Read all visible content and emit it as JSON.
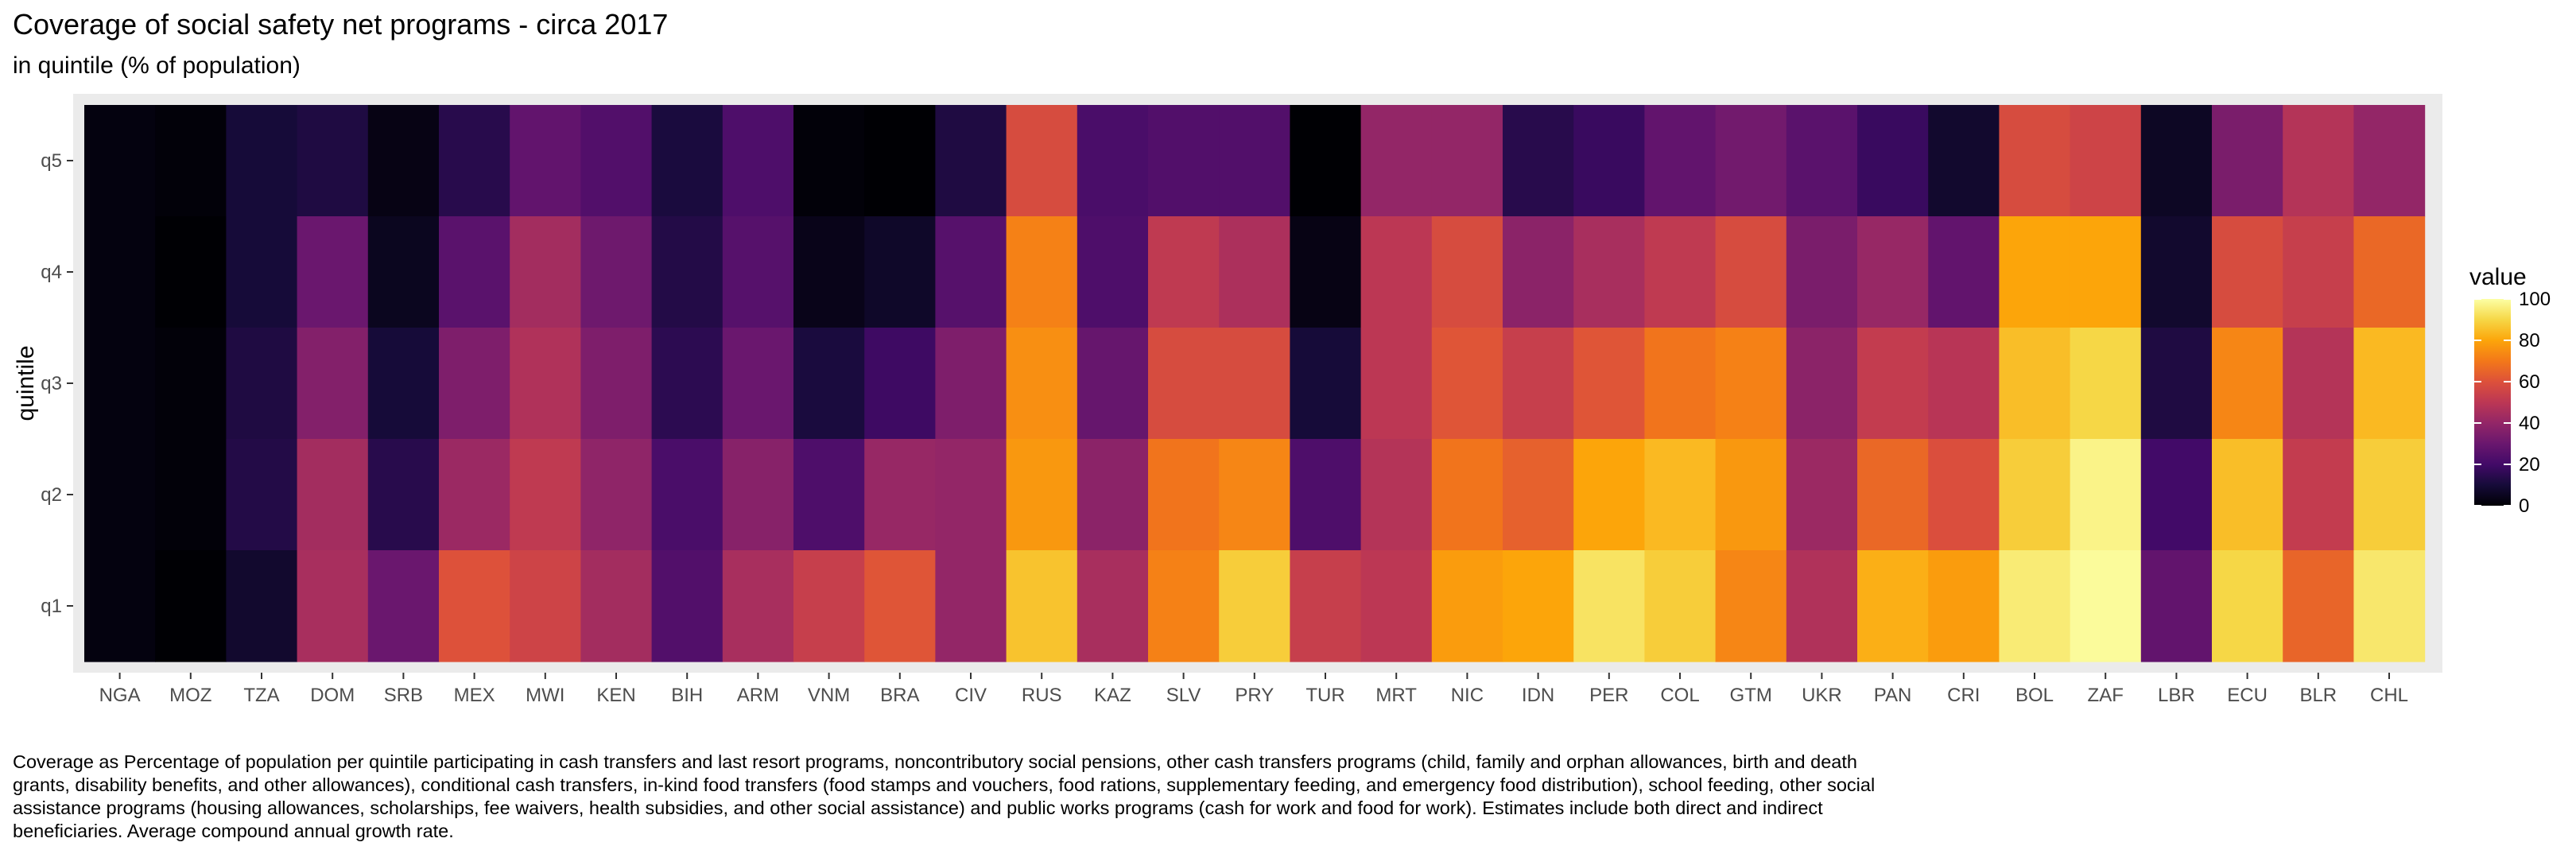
{
  "title": "Coverage of social safety net programs - circa 2017",
  "subtitle": "in quintile (% of population)",
  "caption": "Coverage as Percentage of population per quintile participating in cash transfers and last resort programs, noncontributory social pensions, other cash transfers programs (child, family and orphan allowances, birth and death grants, disability benefits, and other allowances), conditional cash transfers, in-kind food transfers (food stamps and vouchers, food rations, supplementary feeding, and emergency food distribution), school feeding, other social assistance programs (housing allowances, scholarships, fee waivers, health subsidies, and other social assistance) and public works programs (cash for work and food for work). Estimates include both direct and indirect beneficiaries. Average compound annual growth rate.",
  "chart_data": {
    "type": "heatmap",
    "colormap": "inferno",
    "panel_background": "#EBEBEB",
    "grid": false,
    "legend_position": "right",
    "xlabel": "",
    "ylabel": "quintile",
    "legend_title": "value",
    "legend_range": [
      0,
      100
    ],
    "legend_ticks": [
      0,
      20,
      40,
      60,
      80,
      100
    ],
    "x": [
      "NGA",
      "MOZ",
      "TZA",
      "DOM",
      "SRB",
      "MEX",
      "MWI",
      "KEN",
      "BIH",
      "ARM",
      "VNM",
      "BRA",
      "CIV",
      "RUS",
      "KAZ",
      "SLV",
      "PRY",
      "TUR",
      "MRT",
      "NIC",
      "IDN",
      "PER",
      "COL",
      "GTM",
      "UKR",
      "PAN",
      "CRI",
      "BOL",
      "ZAF",
      "LBR",
      "ECU",
      "BLR",
      "CHL"
    ],
    "y": [
      "q5",
      "q4",
      "q3",
      "q2",
      "q1"
    ],
    "values": [
      [
        2,
        1,
        10,
        12,
        3,
        14,
        28,
        24,
        11,
        23,
        1,
        0,
        12,
        58,
        22,
        24,
        24,
        0,
        40,
        40,
        14,
        18,
        28,
        32,
        26,
        18,
        8,
        58,
        55,
        6,
        34,
        48,
        40
      ],
      [
        2,
        0,
        10,
        30,
        5,
        26,
        44,
        31,
        13,
        25,
        4,
        7,
        25,
        72,
        23,
        51,
        46,
        3,
        50,
        58,
        38,
        45,
        51,
        58,
        34,
        41,
        28,
        80,
        80,
        8,
        58,
        53,
        66
      ],
      [
        2,
        1,
        12,
        36,
        10,
        35,
        47,
        35,
        15,
        30,
        11,
        19,
        35,
        75,
        29,
        58,
        58,
        10,
        50,
        61,
        53,
        61,
        69,
        72,
        38,
        52,
        49,
        85,
        90,
        12,
        73,
        48,
        84
      ],
      [
        2,
        1,
        13,
        44,
        14,
        42,
        51,
        39,
        22,
        37,
        23,
        41,
        40,
        77,
        38,
        69,
        73,
        23,
        48,
        69,
        64,
        80,
        84,
        77,
        42,
        66,
        59,
        88,
        97,
        20,
        85,
        52,
        88
      ],
      [
        2,
        0,
        8,
        45,
        30,
        60,
        55,
        44,
        24,
        45,
        53,
        61,
        40,
        86,
        45,
        72,
        88,
        53,
        50,
        78,
        80,
        93,
        88,
        73,
        47,
        82,
        78,
        95,
        99,
        28,
        90,
        65,
        94
      ]
    ]
  }
}
